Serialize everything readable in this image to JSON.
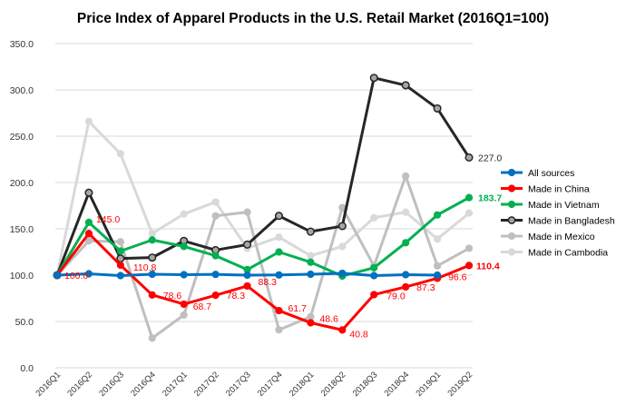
{
  "chart_data": {
    "type": "line",
    "title": "Price Index of Apparel Products in the U.S. Retail Market (2016Q1=100)",
    "xlabel": "",
    "ylabel": "",
    "ylim": [
      0,
      350
    ],
    "yticks": [
      "0.0",
      "50.0",
      "100.0",
      "150.0",
      "200.0",
      "250.0",
      "300.0",
      "350.0"
    ],
    "grid": true,
    "legend_position": "right",
    "categories": [
      "2016Q1",
      "2016Q2",
      "2016Q3",
      "2016Q4",
      "2017Q1",
      "2017Q2",
      "2017Q3",
      "2017Q4",
      "2018Q1",
      "2018Q2",
      "2018Q3",
      "2018Q4",
      "2019Q1",
      "2019Q2"
    ],
    "series": [
      {
        "name": "All sources",
        "color": "#0070C0",
        "values": [
          100,
          101.5,
          99.5,
          101,
          100.5,
          100.8,
          100,
          100.2,
          101,
          102,
          99.5,
          100.5,
          100,
          null
        ],
        "labels": {}
      },
      {
        "name": "Made in China",
        "color": "#FF0000",
        "values": [
          100,
          145,
          110.8,
          78.6,
          68.7,
          78.3,
          88.3,
          61.7,
          48.6,
          40.8,
          79.0,
          87.3,
          96.6,
          110.4
        ],
        "labels": {
          "1": "145.0",
          "2": "110.8",
          "3": "78.6",
          "4": "68.7",
          "5": "78.3",
          "6": "88.3",
          "7": "61.7",
          "8": "48.6",
          "9": "40.8",
          "10": "79.0",
          "11": "87.3",
          "12": "96.6",
          "13": "110.4"
        },
        "bold_labels": [
          "13"
        ],
        "start_label": "100.0"
      },
      {
        "name": "Made in Vietnam",
        "color": "#00B050",
        "values": [
          100,
          157,
          126,
          138,
          131,
          121,
          106,
          125,
          114,
          99,
          108,
          135,
          165,
          183.7
        ],
        "labels": {
          "13": "183.7"
        },
        "bold_labels": [
          "13"
        ]
      },
      {
        "name": "Made in Bangladesh",
        "color": "#262626",
        "values": [
          100,
          189,
          118,
          119,
          137,
          127,
          133,
          164,
          147,
          153,
          313,
          305,
          280,
          227.0
        ],
        "labels": {
          "13": "227.0"
        },
        "bold_labels": []
      },
      {
        "name": "Made in Mexico",
        "color": "#BFBFBF",
        "values": [
          100,
          137,
          136,
          32,
          57,
          164,
          168,
          41,
          55,
          173,
          110,
          207,
          110,
          129
        ],
        "labels": {}
      },
      {
        "name": "Made in Cambodia",
        "color": "#D9D9D9",
        "values": [
          100,
          266,
          231,
          145,
          166,
          179,
          129,
          141,
          121,
          131,
          162,
          168,
          139,
          167
        ],
        "labels": {}
      }
    ]
  }
}
